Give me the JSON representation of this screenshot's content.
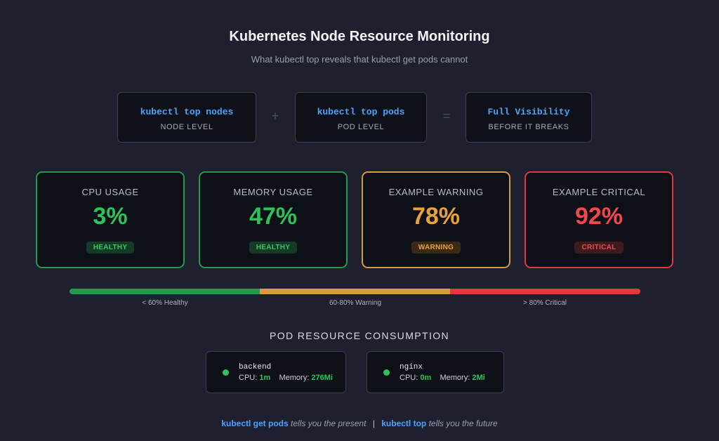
{
  "header": {
    "title": "Kubernetes Node Resource Monitoring",
    "subtitle": "What kubectl top reveals that kubectl get pods cannot"
  },
  "equation": {
    "boxes": [
      {
        "cmd": "kubectl top nodes",
        "level": "NODE LEVEL"
      },
      {
        "cmd": "kubectl top pods",
        "level": "POD LEVEL"
      },
      {
        "cmd": "Full Visibility",
        "level": "BEFORE IT BREAKS"
      }
    ],
    "plus": "+",
    "equals": "="
  },
  "metrics": [
    {
      "label": "CPU USAGE",
      "value": "3%",
      "status": "HEALTHY",
      "color": "#2fc25b"
    },
    {
      "label": "MEMORY USAGE",
      "value": "47%",
      "status": "HEALTHY",
      "color": "#2fc25b"
    },
    {
      "label": "EXAMPLE WARNING",
      "value": "78%",
      "status": "WARNING",
      "color": "#e8a23d"
    },
    {
      "label": "EXAMPLE CRITICAL",
      "value": "92%",
      "status": "CRITICAL",
      "color": "#f0474c"
    }
  ],
  "scale": {
    "healthy_label": "< 60% Healthy",
    "warning_label": "60-80% Warning",
    "critical_label": "> 80% Critical",
    "colors": {
      "healthy": "#1f9d4a",
      "warning": "#d89a3a",
      "critical": "#e0393f"
    }
  },
  "pods": {
    "title": "POD RESOURCE CONSUMPTION",
    "items": [
      {
        "name": "backend",
        "cpu_label": "CPU:",
        "cpu": "1m",
        "mem_label": "Memory:",
        "mem": "276Mi"
      },
      {
        "name": "nginx",
        "cpu_label": "CPU:",
        "cpu": "0m",
        "mem_label": "Memory:",
        "mem": "2Mi"
      }
    ]
  },
  "footer": {
    "cmd1": "kubectl get pods",
    "text1": "tells you the present",
    "separator": "|",
    "cmd2": "kubectl top",
    "text2": "tells you the future"
  }
}
